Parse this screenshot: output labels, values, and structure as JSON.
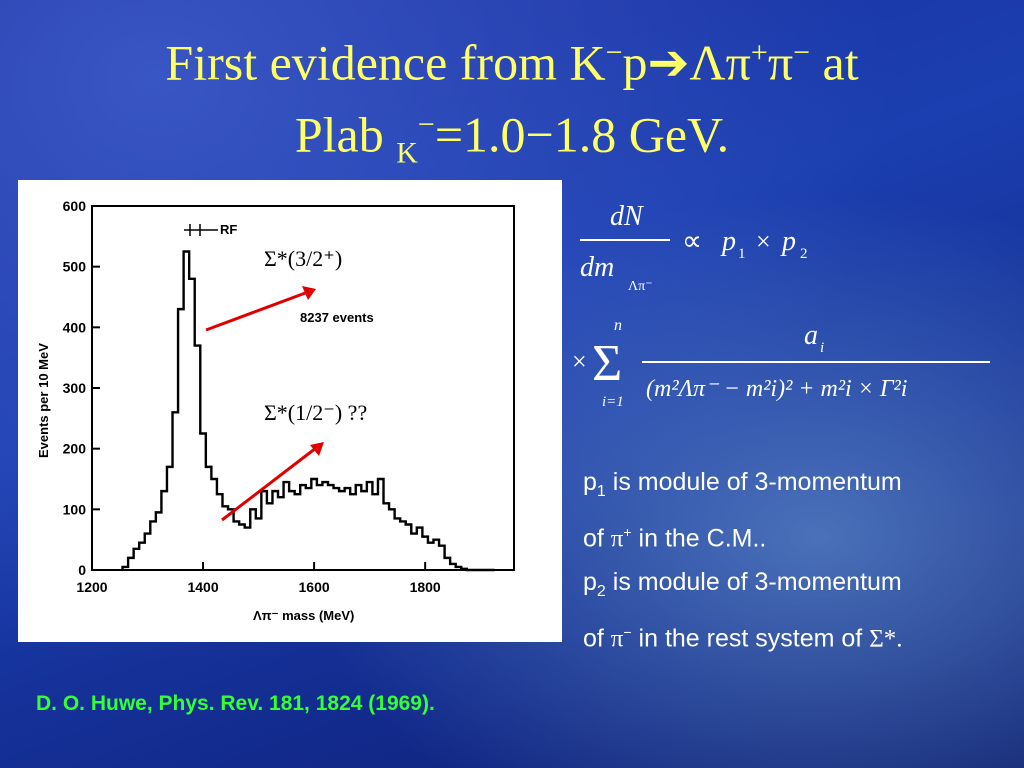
{
  "title": {
    "part1": "First evidence from K",
    "sup_minus1": "−",
    "part2": "p",
    "arrow": "➔",
    "part3": "Λπ",
    "sup_plus": "+",
    "part4": "π",
    "sup_minus2": "−",
    "part5": " at",
    "line2_a": "Plab ",
    "line2_sub": "K",
    "line2_supminus": "−",
    "line2_b": "=1.0−1.8 GeV."
  },
  "annotations": {
    "sigma_32": "Σ*(3/2⁺)",
    "sigma_12": "Σ*(1/2⁻)  ??"
  },
  "formula": {
    "numerator": "dN",
    "denominator": "dm",
    "denominator_sub": "Λπ⁻",
    "proportional": "∝",
    "p1": "p",
    "p1_sub": "1",
    "times": "×",
    "p2": "p",
    "p2_sub": "2",
    "sum_upper": "n",
    "sum_lower": "i=1",
    "sum_symbol": "Σ",
    "a": "a",
    "a_sub": "i",
    "denom_terms": "(m²Λπ⁻ − m²i)² + m²i × Γ²i"
  },
  "notes": {
    "n1_p": "p",
    "n1_sub": "1",
    "n1_text1": " is module of 3-momentum",
    "n1_text2a": "of ",
    "n1_sym": "π",
    "n1_sup": "+",
    "n1_text2b": " in the C.M..",
    "n2_p": "p",
    "n2_sub": "2",
    "n2_text1": " is module of 3-momentum",
    "n2_text2a": "of ",
    "n2_sym": "π",
    "n2_sup": "−",
    "n2_text2b": " in the rest system of ",
    "n2_sigma": "Σ*."
  },
  "reference": "D. O. Huwe, Phys. Rev. 181, 1824 (1969).",
  "colors": {
    "title": "#ffff66",
    "reference": "#33ff33",
    "arrows": "#e00000"
  },
  "chart_data": {
    "type": "histogram",
    "xlabel": "Λπ⁻ mass (MeV)",
    "ylabel": "Events per 10 MeV",
    "xlim": [
      1200,
      1960
    ],
    "ylim": [
      0,
      600
    ],
    "xticks": [
      "1200",
      "1400",
      "1600",
      "1800"
    ],
    "yticks": [
      "0",
      "100",
      "200",
      "300",
      "400",
      "500",
      "600"
    ],
    "annotation_events": "8237 events",
    "annotation_rf": "RF",
    "bins_x": [
      1260,
      1270,
      1280,
      1290,
      1300,
      1310,
      1320,
      1330,
      1340,
      1350,
      1360,
      1370,
      1380,
      1390,
      1400,
      1410,
      1420,
      1430,
      1440,
      1450,
      1460,
      1470,
      1480,
      1490,
      1500,
      1510,
      1520,
      1530,
      1540,
      1550,
      1560,
      1570,
      1580,
      1590,
      1600,
      1610,
      1620,
      1630,
      1640,
      1650,
      1660,
      1670,
      1680,
      1690,
      1700,
      1710,
      1720,
      1730,
      1740,
      1750,
      1760,
      1770,
      1780,
      1790,
      1800,
      1810,
      1820,
      1830,
      1840,
      1850,
      1860,
      1870,
      1880,
      1890,
      1900,
      1910,
      1920
    ],
    "values": [
      5,
      20,
      35,
      45,
      60,
      80,
      95,
      130,
      170,
      260,
      430,
      525,
      480,
      370,
      225,
      170,
      150,
      125,
      105,
      100,
      80,
      75,
      70,
      100,
      85,
      130,
      110,
      130,
      120,
      145,
      130,
      125,
      140,
      135,
      150,
      140,
      145,
      140,
      135,
      130,
      135,
      125,
      140,
      130,
      145,
      125,
      150,
      110,
      100,
      85,
      80,
      75,
      60,
      70,
      55,
      45,
      50,
      40,
      20,
      10,
      5,
      2,
      0,
      0,
      0,
      0,
      0
    ]
  }
}
